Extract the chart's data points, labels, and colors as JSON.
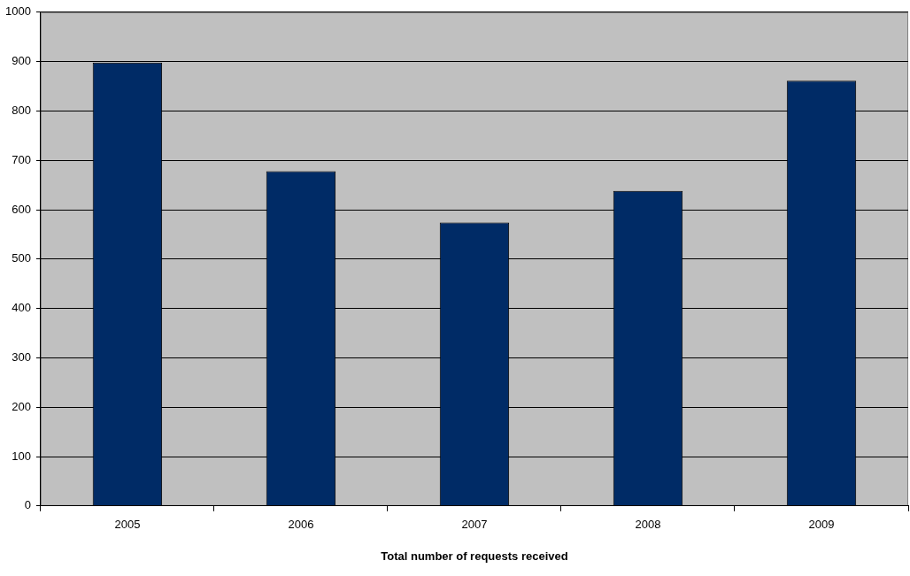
{
  "chart_data": {
    "type": "bar",
    "xlabel": "Total number of requests received",
    "categories": [
      "2005",
      "2006",
      "2007",
      "2008",
      "2009"
    ],
    "values": [
      898,
      678,
      574,
      638,
      861
    ],
    "color": "#002b66",
    "ylim": [
      0,
      1000
    ],
    "yticks": [
      0,
      100,
      200,
      300,
      400,
      500,
      600,
      700,
      800,
      900,
      1000
    ],
    "grid": "y",
    "legend": false
  }
}
